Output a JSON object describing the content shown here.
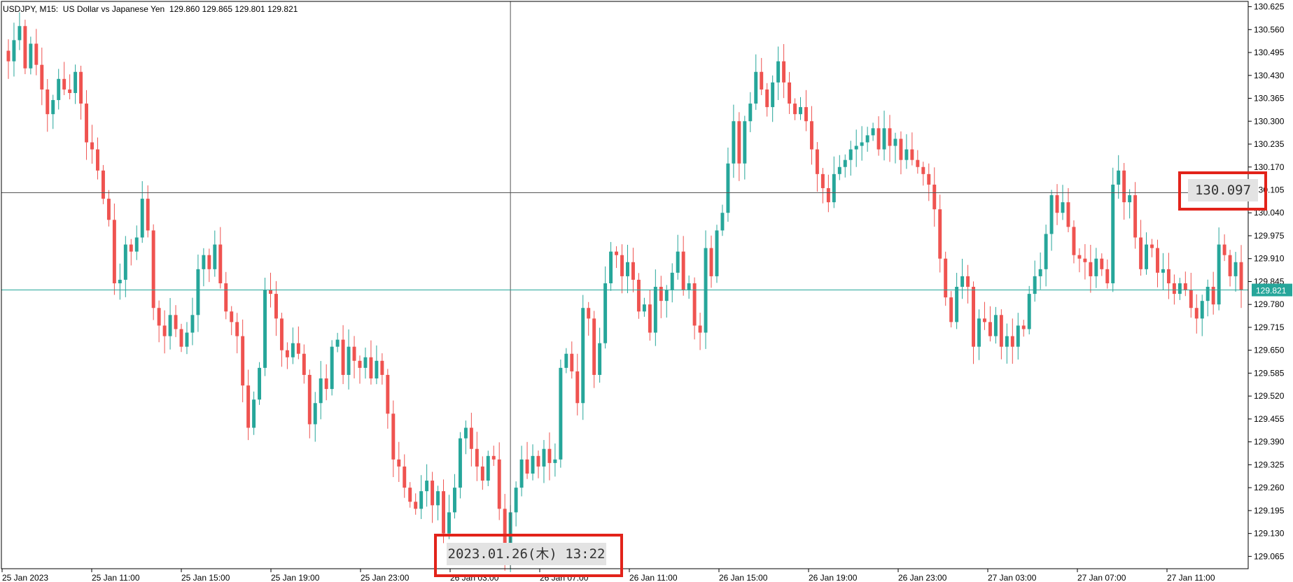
{
  "header": {
    "info_text": "USDJPY, M15:  US Dollar vs Japanese Yen  129.860 129.865 129.801 129.821"
  },
  "colors": {
    "bull": "#26a69a",
    "bear": "#ef5350",
    "grid": "#000000",
    "crosshair": "#555555",
    "bid_line": "#26a69a",
    "highlight": "#e2231a",
    "background": "#ffffff"
  },
  "crosshair": {
    "price_label": "130.097",
    "time_label": "2023.01.26(木) 13:22",
    "price": 130.097
  },
  "current_price": {
    "label": "129.821",
    "value": 129.821
  },
  "chart_data": {
    "type": "candlestick",
    "symbol": "USDJPY",
    "timeframe": "M15",
    "title": "US Dollar vs Japanese Yen",
    "ohlc_last": {
      "open": 129.86,
      "high": 129.865,
      "low": 129.801,
      "close": 129.821
    },
    "ylim": [
      129.03,
      130.64
    ],
    "y_ticks": [
      "130.625",
      "130.560",
      "130.495",
      "130.430",
      "130.365",
      "130.300",
      "130.235",
      "130.170",
      "130.105",
      "130.040",
      "129.975",
      "129.910",
      "129.845",
      "129.780",
      "129.715",
      "129.650",
      "129.585",
      "129.520",
      "129.455",
      "129.390",
      "129.325",
      "129.260",
      "129.195",
      "129.130",
      "129.065"
    ],
    "x_ticks": [
      "25 Jan 2023",
      "25 Jan 11:00",
      "25 Jan 15:00",
      "25 Jan 19:00",
      "25 Jan 23:00",
      "26 Jan 03:00",
      "26 Jan 07:00",
      "26 Jan 11:00",
      "26 Jan 15:00",
      "26 Jan 19:00",
      "26 Jan 23:00",
      "27 Jan 03:00",
      "27 Jan 07:00",
      "27 Jan 11:00"
    ],
    "closes": [
      130.47,
      130.53,
      130.57,
      130.45,
      130.52,
      130.46,
      130.39,
      130.32,
      130.36,
      130.42,
      130.39,
      130.38,
      130.44,
      130.35,
      130.24,
      130.22,
      130.16,
      130.08,
      130.02,
      129.84,
      129.85,
      129.95,
      129.93,
      129.97,
      130.08,
      129.99,
      129.77,
      129.72,
      129.69,
      129.75,
      129.71,
      129.66,
      129.7,
      129.75,
      129.88,
      129.92,
      129.88,
      129.95,
      129.84,
      129.76,
      129.73,
      129.69,
      129.55,
      129.43,
      129.51,
      129.6,
      129.82,
      129.81,
      129.74,
      129.65,
      129.63,
      129.67,
      129.64,
      129.58,
      129.44,
      129.5,
      129.57,
      129.54,
      129.66,
      129.68,
      129.58,
      129.66,
      129.62,
      129.6,
      129.63,
      129.57,
      129.62,
      129.58,
      129.47,
      129.34,
      129.32,
      129.26,
      129.22,
      129.2,
      129.25,
      129.28,
      129.21,
      129.25,
      129.13,
      129.19,
      129.26,
      129.4,
      129.43,
      129.37,
      129.32,
      129.28,
      129.35,
      129.34,
      129.2,
      129.07,
      129.19,
      129.26,
      129.34,
      129.3,
      129.35,
      129.32,
      129.37,
      129.33,
      129.34,
      129.6,
      129.64,
      129.59,
      129.5,
      129.77,
      129.74,
      129.58,
      129.67,
      129.84,
      129.93,
      129.92,
      129.86,
      129.9,
      129.85,
      129.76,
      129.78,
      129.7,
      129.83,
      129.79,
      129.82,
      129.87,
      129.93,
      129.82,
      129.84,
      129.72,
      129.7,
      129.94,
      129.86,
      129.99,
      130.04,
      130.18,
      130.3,
      130.18,
      130.3,
      130.35,
      130.44,
      130.39,
      130.34,
      130.41,
      130.47,
      130.41,
      130.35,
      130.32,
      130.34,
      130.3,
      130.22,
      130.15,
      130.11,
      130.07,
      130.15,
      130.17,
      130.19,
      130.22,
      130.23,
      130.24,
      130.26,
      130.28,
      130.22,
      130.28,
      130.23,
      130.25,
      130.19,
      130.22,
      130.19,
      130.17,
      130.15,
      130.12,
      130.05,
      129.91,
      129.8,
      129.73,
      129.83,
      129.86,
      129.83,
      129.66,
      129.74,
      129.73,
      129.69,
      129.75,
      129.66,
      129.69,
      129.66,
      129.72,
      129.71,
      129.81,
      129.86,
      129.88,
      129.98,
      130.09,
      130.04,
      130.07,
      130.0,
      129.92,
      129.91,
      129.9,
      129.86,
      129.91,
      129.88,
      129.84,
      130.12,
      130.16,
      130.07,
      130.09,
      129.97,
      129.88,
      129.95,
      129.94,
      129.87,
      129.88,
      129.84,
      129.81,
      129.84,
      129.82,
      129.77,
      129.74,
      129.79,
      129.83,
      129.78,
      129.95,
      129.92,
      129.86,
      129.9,
      129.82
    ],
    "bid_line": 129.821,
    "crosshair": {
      "price": 130.097,
      "time": "2023.01.26(木) 13:22"
    }
  }
}
